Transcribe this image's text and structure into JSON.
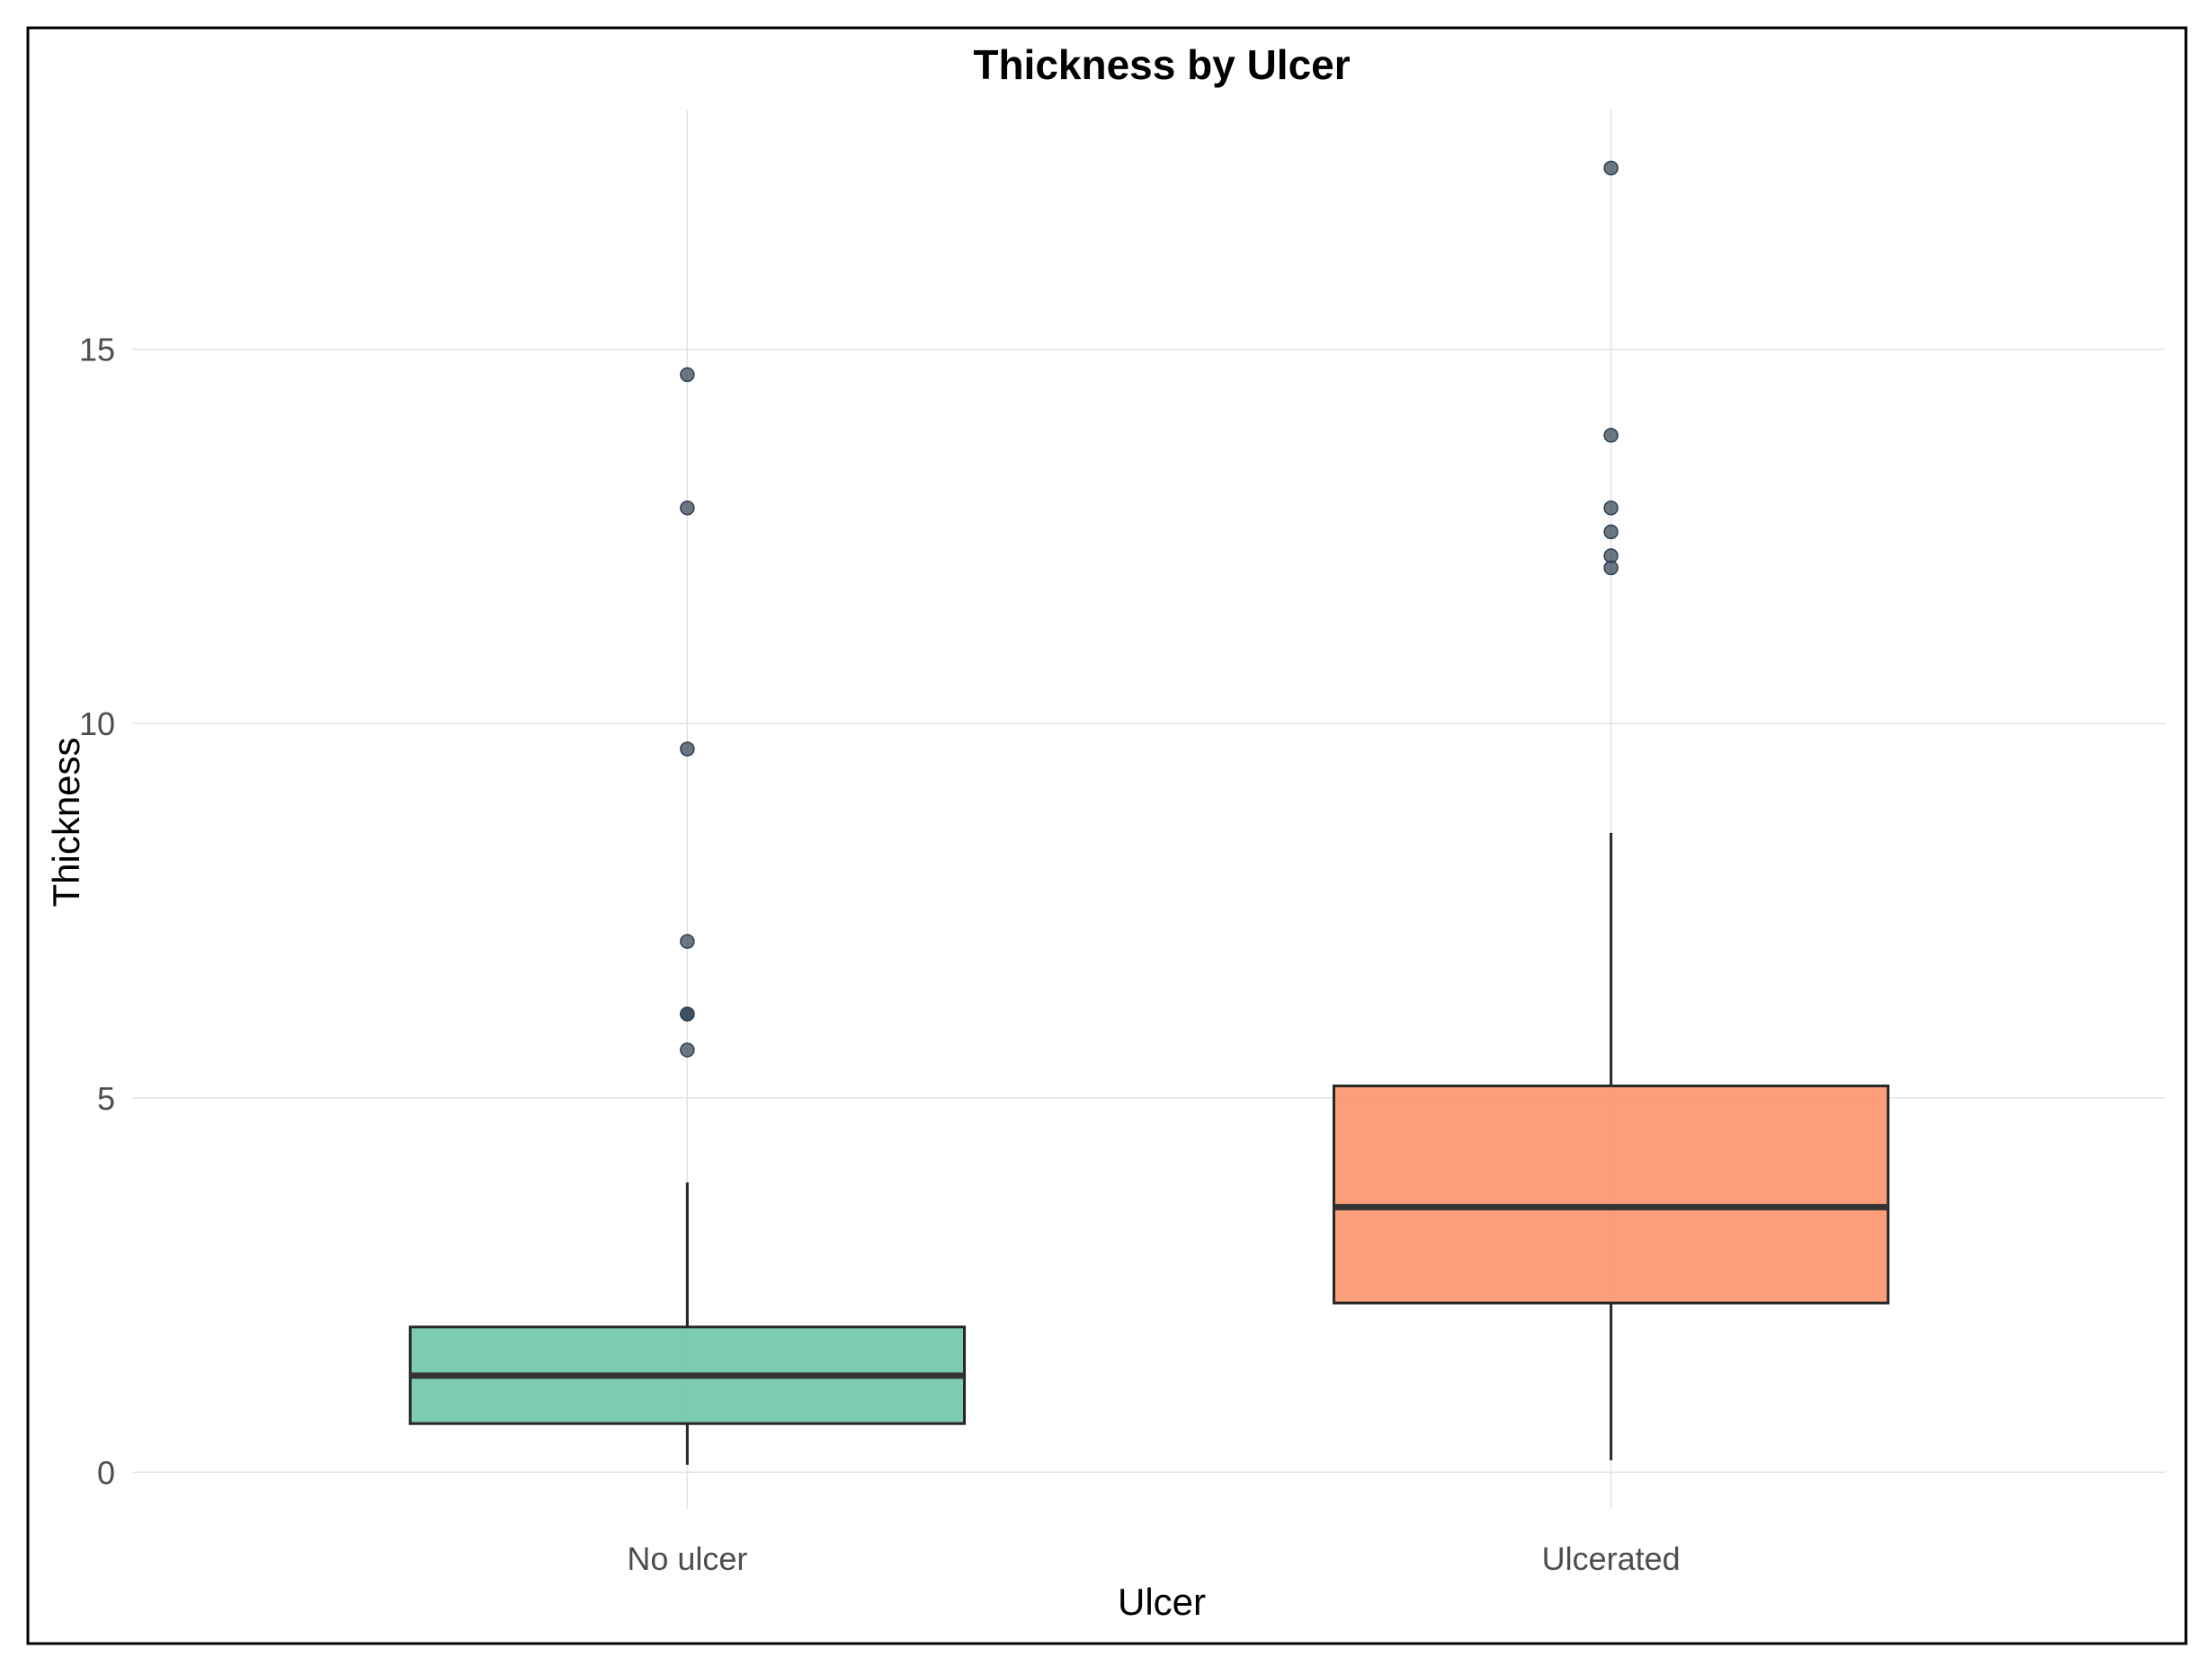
{
  "chart_data": {
    "type": "box",
    "title": "Thickness by Ulcer",
    "xlabel": "Ulcer",
    "ylabel": "Thickness",
    "categories": [
      "No ulcer",
      "Ulcerated"
    ],
    "ylim": [
      -0.5,
      18.2
    ],
    "yticks": [
      0,
      5,
      10,
      15
    ],
    "grid": true,
    "legend": "none",
    "boxes": [
      {
        "category": "No ulcer",
        "color": "#66c2a5",
        "whisker_low": 0.1,
        "q1": 0.65,
        "median": 1.29,
        "q3": 1.94,
        "whisker_high": 3.87,
        "outliers": [
          5.64,
          6.12,
          6.12,
          7.09,
          9.66,
          12.88,
          14.66
        ]
      },
      {
        "category": "Ulcerated",
        "color": "#fc8d62",
        "whisker_low": 0.16,
        "q1": 2.26,
        "median": 3.54,
        "q3": 5.16,
        "whisker_high": 8.54,
        "outliers": [
          12.08,
          12.24,
          12.56,
          12.88,
          13.85,
          17.42
        ]
      }
    ]
  }
}
